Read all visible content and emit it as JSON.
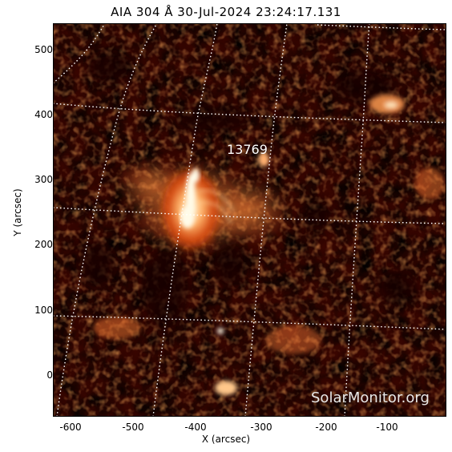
{
  "title": "AIA 304 Å 30-Jul-2024 23:24:17.131",
  "axes": {
    "xlabel": "X (arcsec)",
    "ylabel": "Y (arcsec)",
    "xticks": [
      "-600",
      "-500",
      "-400",
      "-300",
      "-200",
      "-100"
    ],
    "yticks": [
      "500",
      "400",
      "300",
      "200",
      "100",
      "0"
    ]
  },
  "region_label": "13769",
  "watermark": "SolarMonitor.org",
  "colors": {
    "colormap_dark": "#1a0200",
    "colormap_mid": "#b52a06",
    "colormap_bright": "#ffb060",
    "colormap_white": "#fffbe8",
    "grid": "#ffffff"
  }
}
